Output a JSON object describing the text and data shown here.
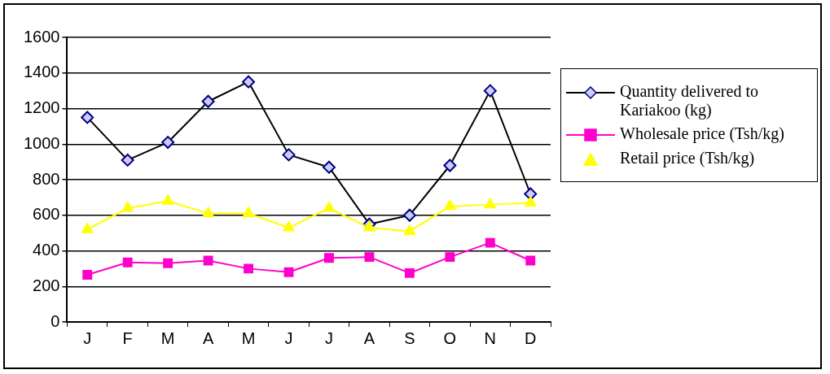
{
  "chart_data": {
    "type": "line",
    "categories": [
      "J",
      "F",
      "M",
      "A",
      "M",
      "J",
      "J",
      "A",
      "S",
      "O",
      "N",
      "D"
    ],
    "series": [
      {
        "name": "Quantity delivered to Kariakoo (kg)",
        "color": "#000080",
        "marker": "diamond",
        "values": [
          1150,
          910,
          1010,
          1240,
          1350,
          940,
          870,
          550,
          600,
          880,
          1300,
          720
        ]
      },
      {
        "name": "Wholesale price (Tsh/kg)",
        "color": "#ff00cc",
        "marker": "square",
        "values": [
          265,
          335,
          330,
          345,
          300,
          280,
          360,
          365,
          275,
          365,
          445,
          345
        ]
      },
      {
        "name": "Retail price (Tsh/kg)",
        "color": "#ffff00",
        "marker": "triangle",
        "values": [
          520,
          640,
          680,
          610,
          610,
          530,
          640,
          530,
          510,
          650,
          660,
          670
        ]
      }
    ],
    "ylim": [
      0,
      1600
    ],
    "yticks": [
      0,
      200,
      400,
      600,
      800,
      1000,
      1200,
      1400,
      1600
    ],
    "grid": "y",
    "legend": "right"
  }
}
